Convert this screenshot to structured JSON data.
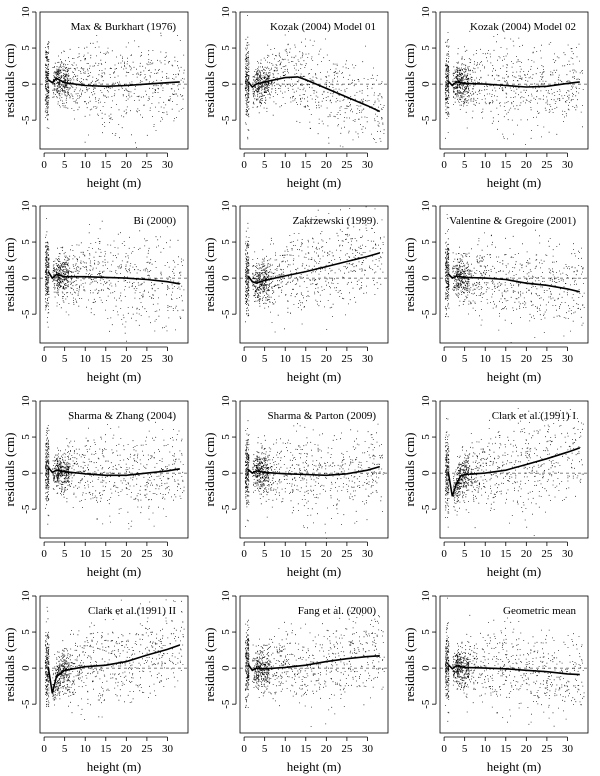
{
  "figure": {
    "background": "#ffffff",
    "point_color": "#000000"
  },
  "chart_data": [
    {
      "type": "scatter",
      "title": "Max & Burkhart (1976)",
      "xlabel": "height (m)",
      "ylabel": "residuals (cm)",
      "xlim": [
        -1,
        35
      ],
      "ylim": [
        -9,
        10
      ],
      "xticks": [
        0,
        5,
        10,
        15,
        20,
        25,
        30
      ],
      "yticks": [
        -5,
        0,
        5,
        10
      ],
      "reference_line": 0,
      "trend": {
        "x": [
          1,
          2,
          3,
          5,
          10,
          15,
          20,
          25,
          30,
          33
        ],
        "y": [
          0.6,
          0.2,
          0.8,
          0.2,
          -0.2,
          -0.3,
          -0.2,
          0,
          0.2,
          0.3
        ]
      }
    },
    {
      "type": "scatter",
      "title": "Kozak (2004) Model 01",
      "xlabel": "height (m)",
      "ylabel": "residuals (cm)",
      "xlim": [
        -1,
        35
      ],
      "ylim": [
        -9,
        10
      ],
      "xticks": [
        0,
        5,
        10,
        15,
        20,
        25,
        30
      ],
      "yticks": [
        -5,
        0,
        5,
        10
      ],
      "reference_line": 0,
      "trend": {
        "x": [
          1,
          2,
          3,
          5,
          10,
          13,
          15,
          20,
          25,
          30,
          33
        ],
        "y": [
          0.3,
          -0.4,
          0,
          0.3,
          0.9,
          1.0,
          0.6,
          -0.6,
          -1.8,
          -3.0,
          -3.8
        ]
      }
    },
    {
      "type": "scatter",
      "title": "Kozak (2004) Model 02",
      "xlabel": "height (m)",
      "ylabel": "residuals (cm)",
      "xlim": [
        -1,
        35
      ],
      "ylim": [
        -9,
        10
      ],
      "xticks": [
        0,
        5,
        10,
        15,
        20,
        25,
        30
      ],
      "yticks": [
        -5,
        0,
        5,
        10
      ],
      "reference_line": 0,
      "trend": {
        "x": [
          1,
          2,
          3,
          5,
          10,
          15,
          20,
          25,
          30,
          33
        ],
        "y": [
          0.4,
          -0.2,
          0.3,
          0.1,
          0,
          -0.2,
          -0.4,
          -0.3,
          0.1,
          0.3
        ]
      }
    },
    {
      "type": "scatter",
      "title": "Bi (2000)",
      "xlabel": "height (m)",
      "ylabel": "residuals (cm)",
      "xlim": [
        -1,
        35
      ],
      "ylim": [
        -9,
        10
      ],
      "xticks": [
        0,
        5,
        10,
        15,
        20,
        25,
        30
      ],
      "yticks": [
        -5,
        0,
        5,
        10
      ],
      "reference_line": 0,
      "trend": {
        "x": [
          1,
          2,
          3,
          5,
          10,
          15,
          20,
          25,
          30,
          33
        ],
        "y": [
          0.9,
          0,
          0.5,
          0.2,
          0.2,
          0.1,
          0,
          -0.2,
          -0.5,
          -0.8
        ]
      }
    },
    {
      "type": "scatter",
      "title": "Zakrzewski (1999)",
      "xlabel": "height (m)",
      "ylabel": "residuals (cm)",
      "xlim": [
        -1,
        35
      ],
      "ylim": [
        -9,
        10
      ],
      "xticks": [
        0,
        5,
        10,
        15,
        20,
        25,
        30
      ],
      "yticks": [
        -5,
        0,
        5,
        10
      ],
      "reference_line": 0,
      "trend": {
        "x": [
          1,
          2,
          3,
          5,
          10,
          15,
          20,
          25,
          30,
          33
        ],
        "y": [
          0.3,
          -0.5,
          -0.7,
          -0.3,
          0.3,
          0.9,
          1.6,
          2.3,
          3.0,
          3.5
        ]
      }
    },
    {
      "type": "scatter",
      "title": "Valentine & Gregoire (2001)",
      "xlabel": "height (m)",
      "ylabel": "residuals (cm)",
      "xlim": [
        -1,
        35
      ],
      "ylim": [
        -9,
        10
      ],
      "xticks": [
        0,
        5,
        10,
        15,
        20,
        25,
        30
      ],
      "yticks": [
        -5,
        0,
        5,
        10
      ],
      "reference_line": 0,
      "trend": {
        "x": [
          1,
          2,
          3,
          5,
          10,
          15,
          20,
          25,
          30,
          33
        ],
        "y": [
          0.6,
          0,
          0.3,
          0.1,
          0,
          -0.2,
          -0.7,
          -1.0,
          -1.5,
          -1.9
        ]
      }
    },
    {
      "type": "scatter",
      "title": "Sharma & Zhang (2004)",
      "xlabel": "height (m)",
      "ylabel": "residuals (cm)",
      "xlim": [
        -1,
        35
      ],
      "ylim": [
        -9,
        10
      ],
      "xticks": [
        0,
        5,
        10,
        15,
        20,
        25,
        30
      ],
      "yticks": [
        -5,
        0,
        5,
        10
      ],
      "reference_line": 0,
      "trend": {
        "x": [
          1,
          2,
          3,
          5,
          10,
          15,
          20,
          25,
          30,
          33
        ],
        "y": [
          0.8,
          0.1,
          0.4,
          0.2,
          -0.1,
          -0.3,
          -0.3,
          0,
          0.3,
          0.6
        ]
      }
    },
    {
      "type": "scatter",
      "title": "Sharma & Parton (2009)",
      "xlabel": "height (m)",
      "ylabel": "residuals (cm)",
      "xlim": [
        -1,
        35
      ],
      "ylim": [
        -9,
        10
      ],
      "xticks": [
        0,
        5,
        10,
        15,
        20,
        25,
        30
      ],
      "yticks": [
        -5,
        0,
        5,
        10
      ],
      "reference_line": 0,
      "trend": {
        "x": [
          1,
          2,
          3,
          5,
          10,
          15,
          20,
          25,
          30,
          33
        ],
        "y": [
          0.5,
          0,
          0.3,
          0.1,
          -0.1,
          -0.2,
          -0.3,
          -0.1,
          0.4,
          0.9
        ]
      }
    },
    {
      "type": "scatter",
      "title": "Clark et al.(1991) I",
      "xlabel": "height (m)",
      "ylabel": "residuals (cm)",
      "xlim": [
        -1,
        35
      ],
      "ylim": [
        -9,
        10
      ],
      "xticks": [
        0,
        5,
        10,
        15,
        20,
        25,
        30
      ],
      "yticks": [
        -5,
        0,
        5,
        10
      ],
      "reference_line": 0,
      "trend": {
        "x": [
          1,
          2,
          3,
          4,
          5,
          10,
          15,
          20,
          25,
          30,
          33
        ],
        "y": [
          0.2,
          -3.2,
          -1.5,
          -0.4,
          -0.2,
          0,
          0.4,
          1.2,
          2.0,
          2.9,
          3.5
        ]
      }
    },
    {
      "type": "scatter",
      "title": "Clark et al.(1991) II",
      "xlabel": "height (m)",
      "ylabel": "residuals (cm)",
      "xlim": [
        -1,
        35
      ],
      "ylim": [
        -9,
        10
      ],
      "xticks": [
        0,
        5,
        10,
        15,
        20,
        25,
        30
      ],
      "yticks": [
        -5,
        0,
        5,
        10
      ],
      "reference_line": 0,
      "trend": {
        "x": [
          1,
          2,
          3,
          5,
          10,
          15,
          20,
          25,
          30,
          33
        ],
        "y": [
          0.2,
          -3.5,
          -1.2,
          -0.3,
          0.2,
          0.4,
          0.9,
          1.8,
          2.6,
          3.2
        ]
      }
    },
    {
      "type": "scatter",
      "title": "Fang et al. (2000)",
      "xlabel": "height (m)",
      "ylabel": "residuals (cm)",
      "xlim": [
        -1,
        35
      ],
      "ylim": [
        -9,
        10
      ],
      "xticks": [
        0,
        5,
        10,
        15,
        20,
        25,
        30
      ],
      "yticks": [
        -5,
        0,
        5,
        10
      ],
      "reference_line": 0,
      "trend": {
        "x": [
          1,
          2,
          3,
          5,
          10,
          15,
          20,
          25,
          30,
          33
        ],
        "y": [
          0.5,
          -0.3,
          0,
          -0.1,
          0.1,
          0.4,
          0.9,
          1.3,
          1.6,
          1.7
        ]
      }
    },
    {
      "type": "scatter",
      "title": "Geometric mean",
      "xlabel": "height (m)",
      "ylabel": "residuals (cm)",
      "xlim": [
        -1,
        35
      ],
      "ylim": [
        -9,
        10
      ],
      "xticks": [
        0,
        5,
        10,
        15,
        20,
        25,
        30
      ],
      "yticks": [
        -5,
        0,
        5,
        10
      ],
      "reference_line": 0,
      "trend": {
        "x": [
          1,
          2,
          3,
          5,
          10,
          15,
          20,
          25,
          30,
          33
        ],
        "y": [
          0.5,
          -0.1,
          0.3,
          0.1,
          0,
          -0.1,
          -0.3,
          -0.5,
          -0.8,
          -0.9
        ]
      }
    }
  ]
}
